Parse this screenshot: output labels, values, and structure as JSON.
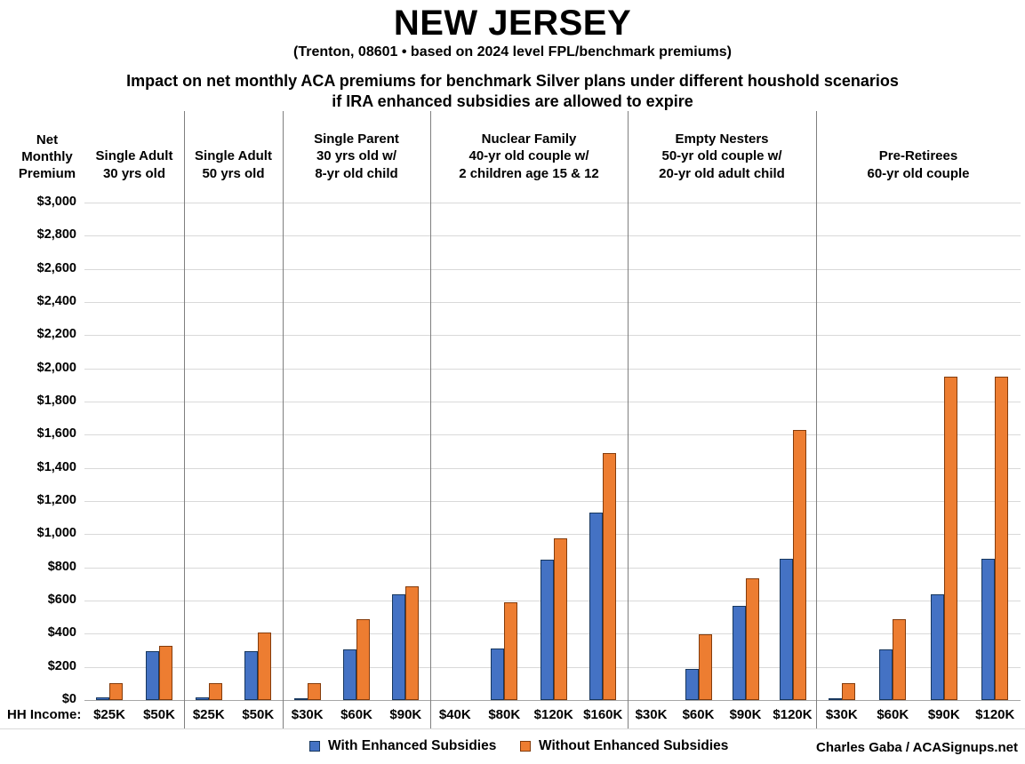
{
  "header": {
    "title": "NEW JERSEY",
    "subtitle": "(Trenton, 08601 • based on 2024 level FPL/benchmark premiums)",
    "chart_title_line1": "Impact on net monthly ACA premiums for benchmark Silver plans under different houshold scenarios",
    "chart_title_line2": "if IRA enhanced subsidies are allowed to expire"
  },
  "axis": {
    "y_label_lines": [
      "Net",
      "Monthly",
      "Premium"
    ],
    "x_label": "HH Income:",
    "y_ticks": [
      "$0",
      "$200",
      "$400",
      "$600",
      "$800",
      "$1,000",
      "$1,200",
      "$1,400",
      "$1,600",
      "$1,800",
      "$2,000",
      "$2,200",
      "$2,400",
      "$2,600",
      "$2,800",
      "$3,000"
    ]
  },
  "legend": {
    "items": [
      {
        "label": "With Enhanced Subsidies",
        "color_key": "with_enhanced"
      },
      {
        "label": "Without Enhanced Subsidies",
        "color_key": "without_enhanced"
      }
    ]
  },
  "credit": "Charles Gaba / ACASignups.net",
  "chart_data": {
    "type": "bar",
    "title": "Impact on net monthly ACA premiums for benchmark Silver plans under different houshold scenarios if IRA enhanced subsidies are allowed to expire",
    "ylabel": "Net Monthly Premium",
    "xlabel": "HH Income",
    "ylim": [
      0,
      3000
    ],
    "ytick_step": 200,
    "grid": true,
    "legend_position": "bottom",
    "series_names": [
      "With Enhanced Subsidies",
      "Without Enhanced Subsidies"
    ],
    "colors": {
      "with_enhanced": "#4472C4",
      "with_enhanced_border": "#17375E",
      "without_enhanced": "#ED7D31",
      "without_enhanced_border": "#843C0C",
      "gridline": "#D9D9D9",
      "zero_line": "#A6A6A6",
      "divider": "#7F7F7F"
    },
    "panels": [
      {
        "label_lines": [
          "Single Adult",
          "30 yrs old"
        ],
        "categories": [
          "$25K",
          "$50K"
        ],
        "with_enhanced": [
          15,
          295
        ],
        "without_enhanced": [
          100,
          325
        ]
      },
      {
        "label_lines": [
          "Single Adult",
          "50 yrs old"
        ],
        "categories": [
          "$25K",
          "$50K"
        ],
        "with_enhanced": [
          15,
          295
        ],
        "without_enhanced": [
          100,
          405
        ]
      },
      {
        "label_lines": [
          "Single Parent",
          "30 yrs old w/",
          "8-yr old child"
        ],
        "categories": [
          "$30K",
          "$60K",
          "$90K"
        ],
        "with_enhanced": [
          5,
          305,
          640
        ],
        "without_enhanced": [
          100,
          490,
          685
        ]
      },
      {
        "label_lines": [
          "Nuclear Family",
          "40-yr old couple w/",
          "2 children age 15 & 12"
        ],
        "categories": [
          "$40K",
          "$80K",
          "$120K",
          "$160K"
        ],
        "with_enhanced": [
          0,
          310,
          845,
          1130
        ],
        "without_enhanced": [
          0,
          590,
          975,
          1490
        ]
      },
      {
        "label_lines": [
          "Empty Nesters",
          "50-yr old couple w/",
          "20-yr old adult child"
        ],
        "categories": [
          "$30K",
          "$60K",
          "$90K",
          "$120K"
        ],
        "with_enhanced": [
          0,
          185,
          570,
          850
        ],
        "without_enhanced": [
          0,
          395,
          735,
          1630
        ]
      },
      {
        "label_lines": [
          "Pre-Retirees",
          "60-yr old couple"
        ],
        "categories": [
          "$30K",
          "$60K",
          "$90K",
          "$120K"
        ],
        "with_enhanced": [
          5,
          305,
          640,
          850
        ],
        "without_enhanced": [
          100,
          490,
          1950,
          1950
        ]
      }
    ]
  }
}
